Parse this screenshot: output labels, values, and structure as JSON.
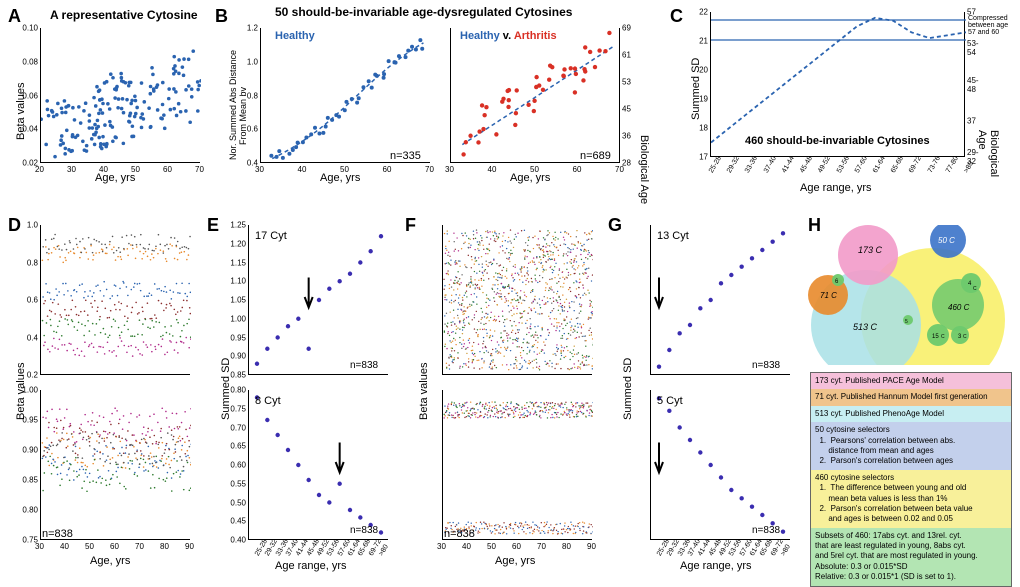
{
  "A": {
    "label": "A",
    "title": "A representative Cytosine",
    "xlabel": "Age, yrs",
    "ylabel": "Beta values",
    "points": {
      "n": 180,
      "x_range": [
        20,
        70
      ],
      "y_range": [
        0.01,
        0.11
      ],
      "color": "#2a63b0"
    },
    "xlim": [
      20,
      70
    ],
    "ylim": [
      0.01,
      0.11
    ],
    "yticks": [
      "0.02",
      "0.04",
      "0.06",
      "0.08",
      "0.10"
    ],
    "xticks": [
      "20",
      "30",
      "40",
      "50",
      "60",
      "70"
    ]
  },
  "B": {
    "label": "B",
    "title": "50 should-be-invariable age-dysregulated  Cytosines",
    "left": {
      "series_label": "Healthy",
      "label_color": "#2a63b0",
      "ylabel": "Nor. Summed Abs Distance\nFrom Mean bv",
      "xlabel": "Age, yrs",
      "n": "n=335",
      "curve_color": "#2a63b0",
      "point_color": "#2a63b0",
      "xlim": [
        25,
        70
      ],
      "ylim": [
        0.4,
        1.4
      ],
      "xticks": [
        "30",
        "40",
        "50",
        "60",
        "70"
      ],
      "yticks": [
        "0.4",
        "0.6",
        "0.8",
        "1.0",
        "1.2"
      ]
    },
    "right": {
      "series_label": "Healthy v. Arthritis",
      "healthy_color": "#2a63b0",
      "arthritis_color": "#d93025",
      "xlabel": "Age, yrs",
      "n": "n=689",
      "ylabel_r": "Biological Age",
      "xlim": [
        25,
        70
      ],
      "xticks": [
        "30",
        "40",
        "50",
        "60",
        "70"
      ],
      "yticks_r": [
        "28",
        "36",
        "45",
        "53",
        "61",
        "69"
      ]
    }
  },
  "C": {
    "label": "C",
    "xlabel": "Age range, yrs",
    "ylabel": "Summed SD",
    "ylabel_r": "Biological Age",
    "title": "460 should-be-invariable Cytosines",
    "annotation": "Compressed\nbetween age\n57 and 60",
    "curve_color": "#2a63b0",
    "line_color": "#2a63b0",
    "ylim": [
      17,
      22
    ],
    "yticks": [
      "17",
      "18",
      "19",
      "20",
      "21",
      "22"
    ],
    "yticks_r": [
      "29-32",
      "37",
      "45-48",
      "53-54",
      "57"
    ],
    "xticks": [
      "25-28",
      "29-32",
      "33-36",
      "37-40",
      "41-44",
      "45-48",
      "49-52",
      "53-56",
      "57-60",
      "61-64",
      "65-68",
      "69-72",
      "73-76",
      "77-80",
      ">80"
    ]
  },
  "D": {
    "label": "D",
    "xlabel": "Age, yrs",
    "ylabel": "Beta values",
    "n": "n=838",
    "top": {
      "ylim": [
        0.2,
        1.0
      ],
      "yticks": [
        "0.2",
        "0.4",
        "0.6",
        "0.8",
        "1.0"
      ],
      "colors": [
        "#e8892b",
        "#2a63b0",
        "#8a2d2d",
        "#2d7a2d",
        "#b02a8a"
      ]
    },
    "bottom": {
      "ylim": [
        0.75,
        1.0
      ],
      "yticks": [
        "0.75",
        "0.80",
        "0.85",
        "0.90",
        "0.95",
        "1.00"
      ]
    },
    "xticks": [
      "30",
      "40",
      "50",
      "60",
      "70",
      "80",
      "90"
    ]
  },
  "E": {
    "label": "E",
    "xlabel": "Age range, yrs",
    "ylabel": "Summed SD",
    "top": {
      "title": "17 Cyt",
      "ylim": [
        0.85,
        1.25
      ],
      "yticks": [
        "0.85",
        "0.90",
        "0.95",
        "1.00",
        "1.05",
        "1.10",
        "1.15",
        "1.20",
        "1.25"
      ],
      "n": "n=838",
      "point_color": "#3a2db0"
    },
    "bottom": {
      "title": "8 Cyt",
      "ylim": [
        0.4,
        0.8
      ],
      "yticks": [
        "0.40",
        "0.45",
        "0.50",
        "0.55",
        "0.60",
        "0.65",
        "0.70",
        "0.75",
        "0.80"
      ],
      "n": "n=838",
      "point_color": "#3a2db0"
    },
    "xticks": [
      "25-28",
      "29-32",
      "33-36",
      "37-40",
      "41-44",
      "45-48",
      "49-52",
      "53-56",
      "57-60",
      "61-64",
      "65-68",
      "69-72",
      ">80"
    ]
  },
  "F": {
    "label": "F",
    "xlabel": "Age, yrs",
    "ylabel": "Beta values",
    "top": {
      "ylim": [
        0,
        1.0
      ]
    },
    "bottom": {
      "ylim": [
        0,
        1.0
      ]
    },
    "n": "n=838",
    "xticks": [
      "30",
      "40",
      "50",
      "60",
      "70",
      "80",
      "90"
    ]
  },
  "G": {
    "label": "G",
    "xlabel": "Age range, yrs",
    "ylabel": "Summed SD",
    "top": {
      "title": "13 Cyt",
      "ylim": [
        1.4,
        3.2
      ],
      "n": "n=838",
      "point_color": "#3a2db0"
    },
    "bottom": {
      "title": "5 Cyt",
      "ylim": [
        0.09,
        0.45
      ],
      "n": "n=838",
      "point_color": "#3a2db0"
    },
    "xticks": [
      "25-28",
      "29-32",
      "33-36",
      "37-40",
      "41-44",
      "45-48",
      "49-52",
      "53-56",
      "57-60",
      "61-64",
      "65-68",
      "69-72",
      ">80"
    ]
  },
  "H": {
    "label": "H",
    "venn": {
      "pink": {
        "label": "173 C",
        "color": "#f29ac9"
      },
      "blue": {
        "label": "50 C",
        "color": "#3b73c9"
      },
      "orange": {
        "label": "71 C",
        "color": "#e8892b"
      },
      "lightblue": {
        "label": "513 C",
        "color": "#a8e0e6"
      },
      "yellow": {
        "label": "460 C",
        "color": "#f8f06a"
      },
      "green1": {
        "label": "4 C",
        "color": "#6dc96d"
      },
      "green2": {
        "label": "15 C",
        "color": "#6dc96d"
      },
      "green3": {
        "label": "3 C",
        "color": "#6dc96d"
      },
      "small": {
        "label": "6",
        "color": "#6dc96d"
      },
      "small2": {
        "label": "5 C",
        "color": "#6dc96d"
      }
    },
    "legend": [
      {
        "bg": "#f5c0da",
        "text": "173 cyt. Published PACE Age Model"
      },
      {
        "bg": "#f0c48c",
        "text": "71 cyt. Published Hannum Model first generation"
      },
      {
        "bg": "#c7eef2",
        "text": "513 cyt. Published PhenoAge Model"
      },
      {
        "bg": "#c3d0ec",
        "text": "50 cytosine selectors\n  1.  Pearsons' correlation between abs.\n      distance from mean and ages\n  2.  Parson's correlation between ages"
      },
      {
        "bg": "#f8f09a",
        "text": "460 cytosine selectors\n  1.  The difference between young and old\n      mean beta values is less than 1%\n  2.  Parson's correlation between beta value\n      and ages is between 0.02 and 0.05"
      },
      {
        "bg": "#b3e5b3",
        "text": "Subsets of 460: 17abs cyt. and 13rel. cyt.\nthat are least regulated in young, 8abs cyt.\nand 5rel cyt. that are most regulated in young.\nAbsolute: 0.3 or 0.015*SD\nRelative: 0.3 or 0.015*1 (SD is set to 1)."
      }
    ]
  }
}
